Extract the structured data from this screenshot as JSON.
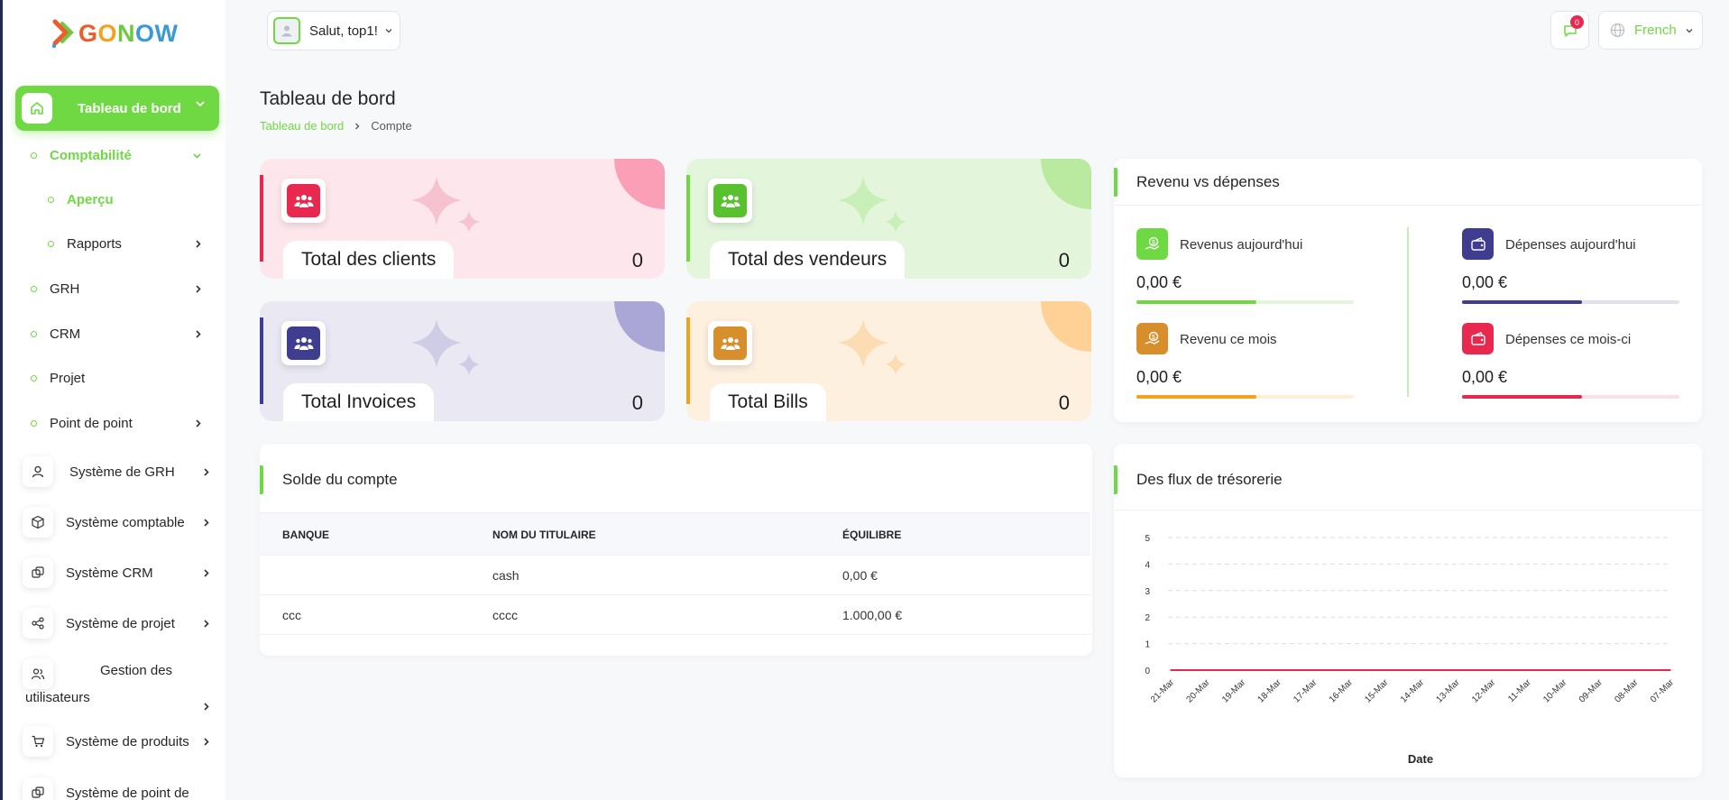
{
  "brand": {
    "logo_text_parts": [
      "G",
      "O",
      "N",
      "O",
      "W"
    ]
  },
  "sidebar": {
    "main_item": {
      "label": "Tableau de bord",
      "icon": "home-icon"
    },
    "sub_items": [
      {
        "label": "Comptabilité",
        "active": true,
        "expanded": true
      },
      {
        "label": "Aperçu",
        "active": true
      },
      {
        "label": "Rapports"
      },
      {
        "label": "GRH"
      },
      {
        "label": "CRM"
      },
      {
        "label": "Projet"
      },
      {
        "label": "Point de point"
      }
    ],
    "systems": [
      {
        "label": "Système de GRH",
        "icon": "user-icon"
      },
      {
        "label": "Système comptable",
        "icon": "box-icon"
      },
      {
        "label": "Système CRM",
        "icon": "layers-icon"
      },
      {
        "label": "Système de projet",
        "icon": "share-icon"
      },
      {
        "label_line1": "Gestion des",
        "label_line2": "utilisateurs",
        "icon": "users-icon"
      },
      {
        "label": "Système de produits",
        "icon": "cart-icon"
      },
      {
        "label": "Système de point de",
        "icon": "layers-icon"
      }
    ]
  },
  "header": {
    "greeting": "Salut, top1!",
    "notifications": "0",
    "language": "French"
  },
  "page": {
    "title": "Tableau de bord",
    "breadcrumb": [
      "Tableau de bord",
      "Compte"
    ]
  },
  "stats": [
    {
      "label": "Total des clients",
      "value": "0",
      "color": "#e8284f"
    },
    {
      "label": "Total des vendeurs",
      "value": "0",
      "color": "#6fd943"
    },
    {
      "label": "Total Invoices",
      "value": "0",
      "color": "#3f3d8f"
    },
    {
      "label": "Total Bills",
      "value": "0",
      "color": "#f3a11e"
    }
  ],
  "revenue_card": {
    "title": "Revenu vs dépenses",
    "metrics": [
      {
        "label": "Revenus aujourd'hui",
        "value": "0,00 €",
        "color": "#6fd943",
        "track": "#e2f6d9",
        "progress": 0.55
      },
      {
        "label": "Dépenses aujourd'hui",
        "value": "0,00 €",
        "color": "#3f3d8f",
        "track": "#e1e1ec",
        "progress": 0.55
      },
      {
        "label": "Revenu ce mois",
        "value": "0,00 €",
        "color": "#f3a11e",
        "track": "#fdefd8",
        "progress": 0.55
      },
      {
        "label": "Dépenses ce mois-ci",
        "value": "0,00 €",
        "color": "#e8284f",
        "track": "#fbe0e6",
        "progress": 0.55
      }
    ]
  },
  "account_card": {
    "title": "Solde du compte",
    "columns": [
      "BANQUE",
      "NOM DU TITULAIRE",
      "ÉQUILIBRE"
    ],
    "rows": [
      [
        "",
        "cash",
        "0,00 €"
      ],
      [
        "ccc",
        "cccc",
        "1.000,00 €"
      ]
    ]
  },
  "cashflow_card": {
    "title": "Des flux de trésorerie"
  },
  "chart_data": {
    "type": "line",
    "title": "",
    "xlabel": "Date",
    "ylabel": "",
    "categories": [
      "21-Mar",
      "20-Mar",
      "19-Mar",
      "18-Mar",
      "17-Mar",
      "16-Mar",
      "15-Mar",
      "14-Mar",
      "13-Mar",
      "12-Mar",
      "11-Mar",
      "10-Mar",
      "09-Mar",
      "08-Mar",
      "07-Mar"
    ],
    "yticks": [
      0,
      1,
      2,
      3,
      4,
      5
    ],
    "ylim": [
      0,
      5
    ],
    "grid": true,
    "series": [
      {
        "color": "#e8284f",
        "values": [
          0,
          0,
          0,
          0,
          0,
          0,
          0,
          0,
          0,
          0,
          0,
          0,
          0,
          0,
          0
        ]
      }
    ]
  }
}
